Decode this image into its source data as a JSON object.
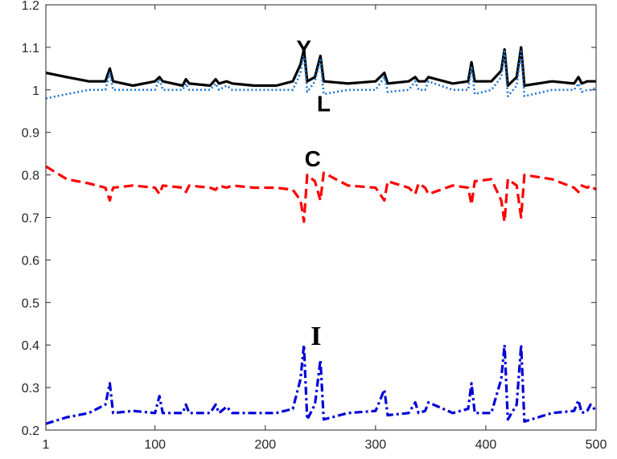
{
  "chart_data": {
    "type": "line",
    "xlim": [
      1,
      500
    ],
    "ylim": [
      0.2,
      1.2
    ],
    "xticks": [
      1,
      100,
      200,
      300,
      400,
      500
    ],
    "yticks": [
      0.2,
      0.3,
      0.4,
      0.5,
      0.6,
      0.7,
      0.8,
      0.9,
      1,
      1.1,
      1.2
    ],
    "xtick_labels": [
      "1",
      "100",
      "200",
      "300",
      "400",
      "500"
    ],
    "ytick_labels": [
      "0.2",
      "0.3",
      "0.4",
      "0.5",
      "0.6",
      "0.7",
      "0.8",
      "0.9",
      "1",
      "1.1",
      "1.2"
    ],
    "grid": false,
    "series": [
      {
        "name": "Y",
        "color": "#000000",
        "style": "solid",
        "x": [
          1,
          20,
          40,
          55,
          59,
          62,
          80,
          100,
          104,
          107,
          125,
          128,
          131,
          150,
          155,
          158,
          165,
          170,
          190,
          210,
          225,
          232,
          235,
          238,
          245,
          250,
          253,
          275,
          300,
          308,
          311,
          330,
          336,
          339,
          345,
          348,
          370,
          384,
          387,
          390,
          405,
          414,
          417,
          420,
          428,
          432,
          435,
          460,
          480,
          484,
          487,
          492,
          495,
          500
        ],
        "values": [
          1.04,
          1.03,
          1.02,
          1.02,
          1.05,
          1.02,
          1.01,
          1.02,
          1.03,
          1.02,
          1.01,
          1.025,
          1.015,
          1.01,
          1.025,
          1.015,
          1.02,
          1.015,
          1.01,
          1.01,
          1.02,
          1.06,
          1.095,
          1.02,
          1.03,
          1.08,
          1.02,
          1.015,
          1.02,
          1.04,
          1.015,
          1.02,
          1.03,
          1.02,
          1.02,
          1.03,
          1.015,
          1.02,
          1.065,
          1.02,
          1.02,
          1.045,
          1.095,
          1.01,
          1.03,
          1.1,
          1.01,
          1.02,
          1.015,
          1.03,
          1.015,
          1.02,
          1.02,
          1.02
        ]
      },
      {
        "name": "L",
        "color": "#1f77d0",
        "style": "dotted",
        "x": [
          1,
          20,
          40,
          55,
          59,
          62,
          80,
          100,
          104,
          107,
          125,
          128,
          131,
          150,
          155,
          158,
          165,
          170,
          190,
          210,
          225,
          232,
          235,
          238,
          245,
          250,
          253,
          275,
          300,
          308,
          311,
          330,
          336,
          339,
          345,
          348,
          370,
          384,
          387,
          390,
          405,
          414,
          417,
          420,
          428,
          432,
          435,
          460,
          480,
          484,
          487,
          492,
          495,
          500
        ],
        "values": [
          0.98,
          0.99,
          1.0,
          1.0,
          1.04,
          1.0,
          1.0,
          1.0,
          1.025,
          1.0,
          1.0,
          1.015,
          1.0,
          1.0,
          1.015,
          1.0,
          1.01,
          1.0,
          1.0,
          1.0,
          1.0,
          1.04,
          1.09,
          0.995,
          1.02,
          1.07,
          0.99,
          1.0,
          1.0,
          1.03,
          0.995,
          1.0,
          1.02,
          1.0,
          1.0,
          1.02,
          1.0,
          1.0,
          1.055,
          0.99,
          1.0,
          1.03,
          1.09,
          0.985,
          1.01,
          1.09,
          0.985,
          1.0,
          1.0,
          1.015,
          0.995,
          1.0,
          1.0,
          1.005
        ]
      },
      {
        "name": "C",
        "color": "#ff0000",
        "style": "dashed",
        "x": [
          1,
          20,
          40,
          55,
          59,
          62,
          80,
          100,
          104,
          107,
          125,
          128,
          131,
          150,
          155,
          158,
          165,
          170,
          190,
          210,
          225,
          232,
          235,
          238,
          245,
          250,
          253,
          275,
          300,
          308,
          311,
          330,
          336,
          339,
          345,
          348,
          370,
          384,
          387,
          390,
          405,
          414,
          417,
          420,
          428,
          432,
          435,
          460,
          480,
          484,
          487,
          492,
          495,
          500
        ],
        "values": [
          0.82,
          0.79,
          0.78,
          0.77,
          0.74,
          0.77,
          0.775,
          0.77,
          0.755,
          0.775,
          0.77,
          0.76,
          0.775,
          0.77,
          0.765,
          0.775,
          0.77,
          0.775,
          0.77,
          0.77,
          0.765,
          0.74,
          0.69,
          0.8,
          0.785,
          0.74,
          0.805,
          0.775,
          0.77,
          0.74,
          0.785,
          0.77,
          0.755,
          0.78,
          0.77,
          0.755,
          0.775,
          0.77,
          0.73,
          0.785,
          0.79,
          0.74,
          0.69,
          0.79,
          0.775,
          0.7,
          0.8,
          0.79,
          0.77,
          0.76,
          0.775,
          0.77,
          0.775,
          0.765
        ]
      },
      {
        "name": "I",
        "color": "#0000d8",
        "style": "dashdot",
        "x": [
          1,
          20,
          40,
          55,
          59,
          62,
          80,
          100,
          104,
          107,
          125,
          128,
          131,
          150,
          155,
          158,
          165,
          170,
          190,
          210,
          225,
          232,
          235,
          238,
          245,
          250,
          253,
          275,
          300,
          308,
          311,
          330,
          336,
          339,
          345,
          348,
          370,
          384,
          387,
          390,
          405,
          414,
          417,
          420,
          428,
          432,
          435,
          460,
          480,
          484,
          487,
          492,
          495,
          500
        ],
        "values": [
          0.215,
          0.23,
          0.24,
          0.26,
          0.31,
          0.24,
          0.245,
          0.24,
          0.28,
          0.24,
          0.24,
          0.26,
          0.24,
          0.24,
          0.26,
          0.24,
          0.255,
          0.24,
          0.24,
          0.24,
          0.25,
          0.32,
          0.4,
          0.225,
          0.26,
          0.365,
          0.225,
          0.24,
          0.245,
          0.295,
          0.235,
          0.24,
          0.265,
          0.24,
          0.245,
          0.265,
          0.24,
          0.25,
          0.31,
          0.24,
          0.24,
          0.32,
          0.4,
          0.225,
          0.26,
          0.4,
          0.22,
          0.24,
          0.245,
          0.27,
          0.24,
          0.245,
          0.26,
          0.245
        ]
      }
    ],
    "annotations": [
      {
        "text": "Y",
        "x": 235,
        "y": 1.08,
        "font": "sans"
      },
      {
        "text": "L",
        "x": 253,
        "y": 0.95,
        "font": "sans"
      },
      {
        "text": "C",
        "x": 243,
        "y": 0.82,
        "font": "sans"
      },
      {
        "text": "I",
        "x": 246,
        "y": 0.4,
        "font": "serif"
      }
    ]
  }
}
